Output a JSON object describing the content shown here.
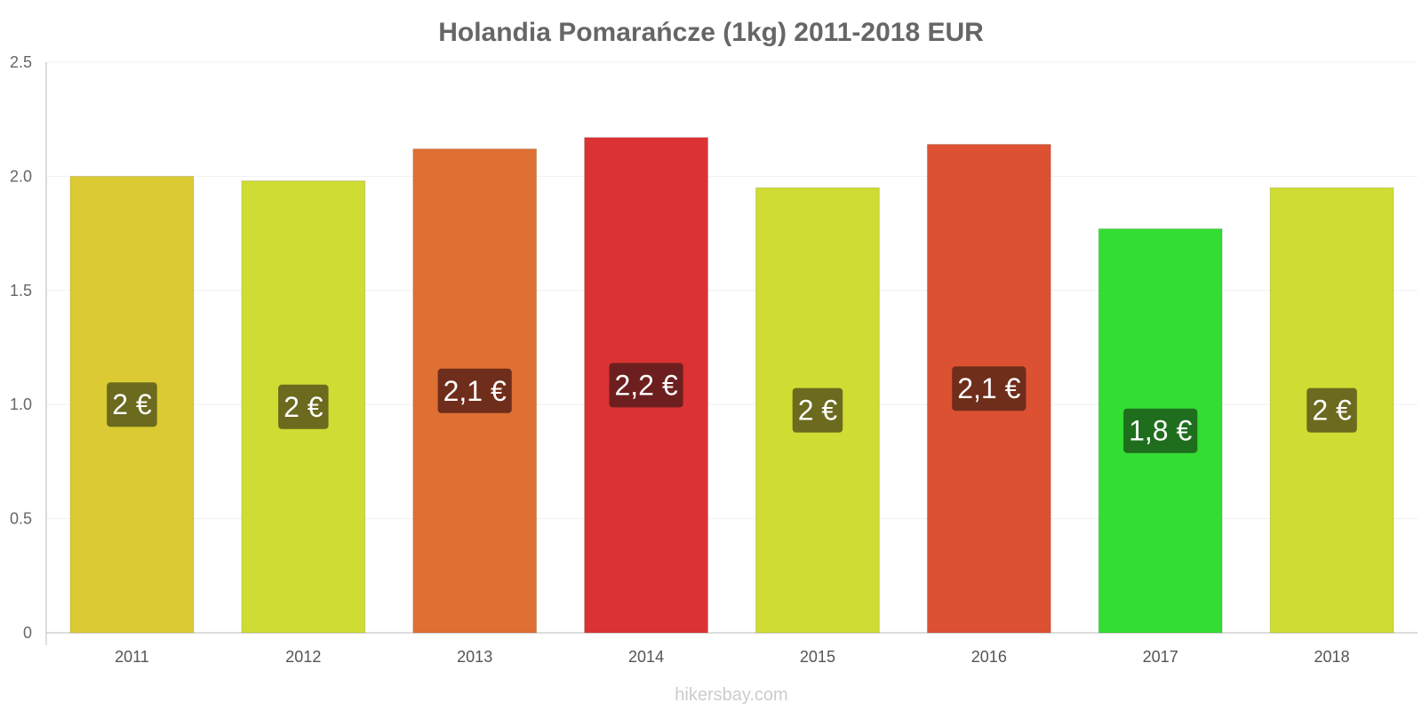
{
  "chart_data": {
    "type": "bar",
    "title": "Holandia Pomarańcze (1kg) 2011-2018 EUR",
    "categories": [
      "2011",
      "2012",
      "2013",
      "2014",
      "2015",
      "2016",
      "2017",
      "2018"
    ],
    "values": [
      2.0,
      1.98,
      2.12,
      2.17,
      1.95,
      2.14,
      1.77,
      1.95
    ],
    "data_labels": [
      "2 €",
      "2 €",
      "2,1 €",
      "2,2 €",
      "2 €",
      "2,1 €",
      "1,8 €",
      "2 €"
    ],
    "bar_colors": [
      "#dbca33",
      "#cfdc33",
      "#de7033",
      "#db3333",
      "#cfdc33",
      "#dd5133",
      "#33dd33",
      "#cfdc33"
    ],
    "label_colors": [
      "#6b6a1e",
      "#6b6a1e",
      "#6f2d1b",
      "#6d1f1f",
      "#6b6a1e",
      "#6f2d1b",
      "#1e6e1e",
      "#6b6a1e"
    ],
    "y_ticks": [
      "0",
      "0.5",
      "1.0",
      "1.5",
      "2.0",
      "2.5"
    ],
    "ylim": [
      0,
      2.5
    ],
    "xlabel": "",
    "ylabel": "",
    "grid": true,
    "legend": "none"
  },
  "watermark": "hikersbay.com"
}
